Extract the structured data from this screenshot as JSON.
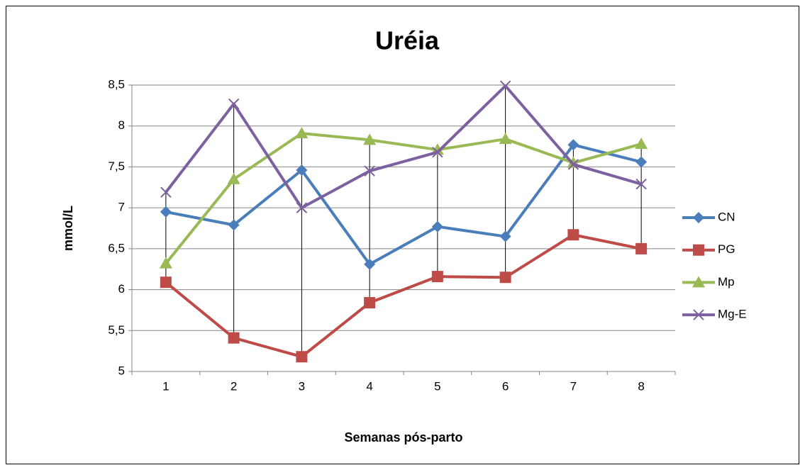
{
  "chart_data": {
    "type": "line",
    "title": "Uréia",
    "ylabel": "mmol/L",
    "xlabel": "Semanas pós-parto",
    "categories": [
      "1",
      "2",
      "3",
      "4",
      "5",
      "6",
      "7",
      "8"
    ],
    "series": [
      {
        "name": "CN",
        "color": "#4a7ebb",
        "marker": "diamond",
        "values": [
          6.95,
          6.79,
          7.46,
          6.31,
          6.77,
          6.65,
          7.77,
          7.56
        ]
      },
      {
        "name": "PG",
        "color": "#be4b48",
        "marker": "square",
        "values": [
          6.09,
          5.41,
          5.18,
          5.84,
          6.16,
          6.15,
          6.67,
          6.5
        ]
      },
      {
        "name": "Mp",
        "color": "#98b954",
        "marker": "triangle",
        "values": [
          6.32,
          7.35,
          7.91,
          7.83,
          7.71,
          7.84,
          7.55,
          7.78
        ]
      },
      {
        "name": "Mg-E",
        "color": "#7d60a0",
        "marker": "x",
        "values": [
          7.19,
          8.27,
          7.0,
          7.45,
          7.68,
          8.49,
          7.53,
          7.29
        ]
      }
    ],
    "ylim": [
      5,
      8.5
    ],
    "yticks": [
      5,
      {
        "value": 5.5,
        "label": "5,5"
      },
      6,
      {
        "value": 6.5,
        "label": "6,5"
      },
      7,
      {
        "value": 7.5,
        "label": "7,5"
      },
      8,
      {
        "value": 8.5,
        "label": "8,5"
      }
    ],
    "grid": true,
    "high_low_lines": true,
    "legend": "right"
  }
}
